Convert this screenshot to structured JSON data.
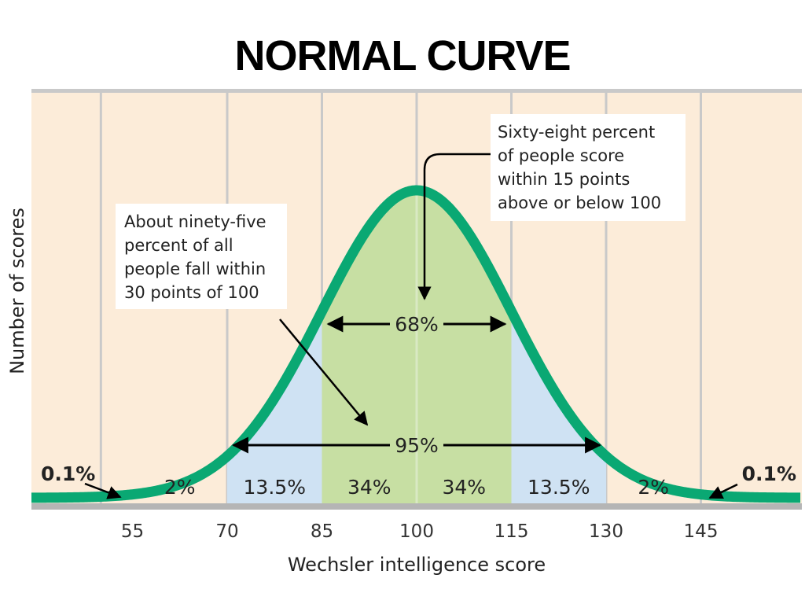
{
  "title": "NORMAL CURVE",
  "colors": {
    "band_bg": "#fcecd9",
    "grid_line": "#c9c9c9",
    "curve": "#0aa873",
    "fill_68": "#c7dfa3",
    "fill_95": "#cfe2f3",
    "axis": "#b5b5b5"
  },
  "callouts": {
    "sixty_eight": [
      "Sixty-eight percent",
      "of people score",
      "within 15 points",
      "above or below 100"
    ],
    "ninety_five": [
      "About ninety-five",
      "percent of all",
      "people fall within",
      "30 points of 100"
    ]
  },
  "chart_data": {
    "type": "area",
    "xlabel": "Wechsler intelligence score",
    "ylabel": "Number of scores",
    "xlim": [
      40,
      160
    ],
    "mean": 100,
    "sd": 15,
    "ticks": [
      55,
      70,
      85,
      100,
      115,
      130,
      145
    ],
    "gridlines": [
      50,
      70,
      85,
      100,
      115,
      130,
      145
    ],
    "regions": [
      {
        "from": 40,
        "to": 55,
        "label": "0.1%"
      },
      {
        "from": 55,
        "to": 70,
        "label": "2%"
      },
      {
        "from": 70,
        "to": 85,
        "label": "13.5%"
      },
      {
        "from": 85,
        "to": 100,
        "label": "34%"
      },
      {
        "from": 100,
        "to": 115,
        "label": "34%"
      },
      {
        "from": 115,
        "to": 130,
        "label": "13.5%"
      },
      {
        "from": 130,
        "to": 145,
        "label": "2%"
      },
      {
        "from": 145,
        "to": 160,
        "label": "0.1%"
      }
    ],
    "ranges": [
      {
        "from": 85,
        "to": 115,
        "label": "68%"
      },
      {
        "from": 70,
        "to": 130,
        "label": "95%"
      }
    ]
  }
}
